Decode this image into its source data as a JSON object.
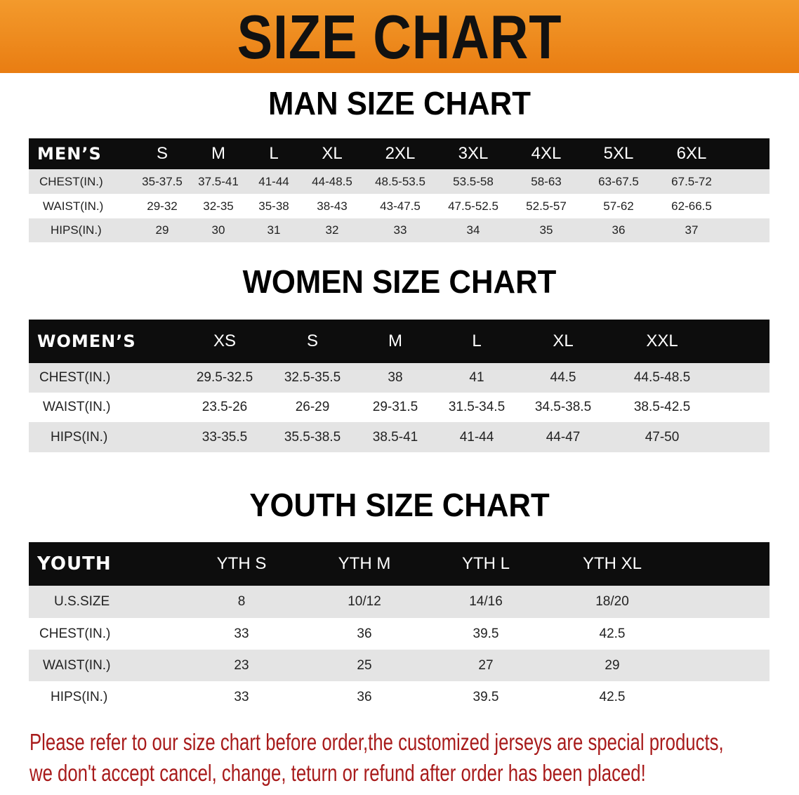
{
  "banner_title": "SIZE CHART",
  "men": {
    "title": "MAN SIZE CHART",
    "header": [
      "MEN’S",
      "S",
      "M",
      "L",
      "XL",
      "2XL",
      "3XL",
      "4XL",
      "5XL",
      "6XL"
    ],
    "rows": [
      [
        "CHEST(IN.)",
        "35-37.5",
        "37.5-41",
        "41-44",
        "44-48.5",
        "48.5-53.5",
        "53.5-58",
        "58-63",
        "63-67.5",
        "67.5-72"
      ],
      [
        "WAIST(IN.)",
        "29-32",
        "32-35",
        "35-38",
        "38-43",
        "43-47.5",
        "47.5-52.5",
        "52.5-57",
        "57-62",
        "62-66.5"
      ],
      [
        "HIPS(IN.)",
        "29",
        "30",
        "31",
        "32",
        "33",
        "34",
        "35",
        "36",
        "37"
      ]
    ]
  },
  "women": {
    "title": "WOMEN SIZE CHART",
    "header": [
      "WOMEN’S",
      "XS",
      "S",
      "M",
      "L",
      "XL",
      "XXL"
    ],
    "rows": [
      [
        "CHEST(IN.)",
        "29.5-32.5",
        "32.5-35.5",
        "38",
        "41",
        "44.5",
        "44.5-48.5"
      ],
      [
        "WAIST(IN.)",
        "23.5-26",
        "26-29",
        "29-31.5",
        "31.5-34.5",
        "34.5-38.5",
        "38.5-42.5"
      ],
      [
        "HIPS(IN.)",
        "33-35.5",
        "35.5-38.5",
        "38.5-41",
        "41-44",
        "44-47",
        "47-50"
      ]
    ]
  },
  "youth": {
    "title": "YOUTH SIZE CHART",
    "header": [
      "YOUTH",
      "YTH S",
      "YTH M",
      "YTH L",
      "YTH XL"
    ],
    "rows": [
      [
        "U.S.SIZE",
        "8",
        "10/12",
        "14/16",
        "18/20"
      ],
      [
        "CHEST(IN.)",
        "33",
        "36",
        "39.5",
        "42.5"
      ],
      [
        "WAIST(IN.)",
        "23",
        "25",
        "27",
        "29"
      ],
      [
        "HIPS(IN.)",
        "33",
        "36",
        "39.5",
        "42.5"
      ]
    ]
  },
  "note": {
    "line1": "Please refer to our size chart before order,the customized jerseys are special products,",
    "line2": "we don't accept cancel, change, teturn or refund after order has been placed!"
  },
  "colors": {
    "banner": "#ee8a1e",
    "header_row": "#0d0d0d",
    "stripe": "#e4e4e4",
    "note": "#a81b1b"
  }
}
